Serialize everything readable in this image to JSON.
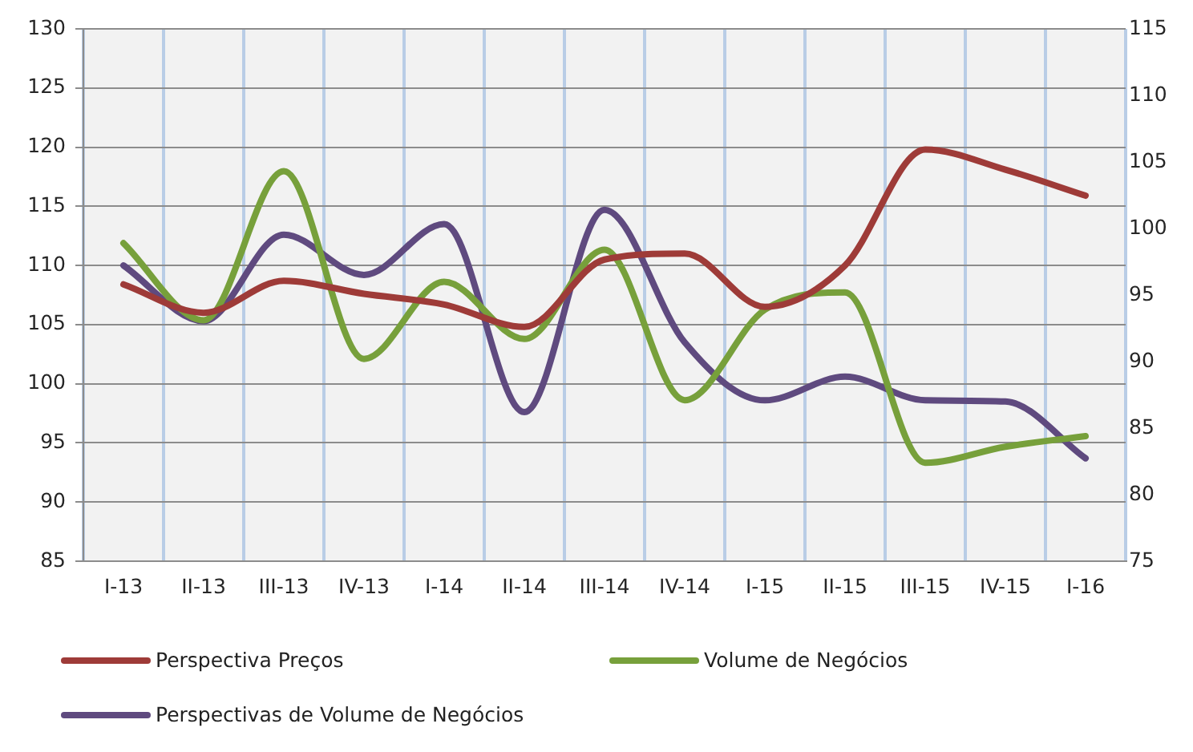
{
  "chart_data": {
    "type": "line",
    "categories": [
      "I-13",
      "II-13",
      "III-13",
      "IV-13",
      "I-14",
      "II-14",
      "III-14",
      "IV-14",
      "I-15",
      "II-15",
      "III-15",
      "IV-15",
      "I-16"
    ],
    "series": [
      {
        "name": "Perspectiva Preços",
        "color": "#9e3b38",
        "values": [
          108.4,
          106.0,
          108.7,
          107.6,
          106.7,
          104.8,
          110.5,
          111.0,
          106.5,
          110.0,
          119.8,
          118.1,
          115.9
        ]
      },
      {
        "name": "Volume de Negócios",
        "color": "#77a03b",
        "axis": "y2",
        "values": [
          98.9,
          93.1,
          104.3,
          90.2,
          96.0,
          91.7,
          98.4,
          87.1,
          93.9,
          95.2,
          82.4,
          83.6,
          84.4
        ]
      },
      {
        "name": "Perspectivas de Volume de Negócios",
        "color": "#5f4a7f",
        "values": [
          110.0,
          105.3,
          112.6,
          109.2,
          113.5,
          97.6,
          114.7,
          103.5,
          98.6,
          100.6,
          98.6,
          98.5,
          93.7
        ]
      }
    ],
    "ylim": [
      85,
      130
    ],
    "yticks": [
      85,
      90,
      95,
      100,
      105,
      110,
      115,
      120,
      125,
      130
    ],
    "y2lim": [
      75,
      115
    ],
    "y2ticks": [
      75,
      80,
      85,
      90,
      95,
      100,
      105,
      110,
      115
    ],
    "grid": true,
    "legend": "bottom",
    "marker": "none",
    "line_style": "solid"
  }
}
